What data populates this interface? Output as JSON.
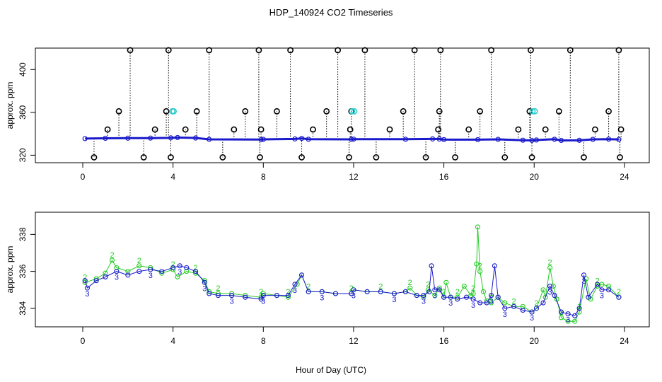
{
  "chart_data": {
    "title": "HDP_140924  CO2 Timeseries",
    "xlabel": "Hour of Day (UTC)",
    "colors": {
      "black": "#000000",
      "blue": "#1a1acc",
      "green": "#22cc22",
      "cyan": "#33cccc",
      "frame": "#000000"
    },
    "panels": [
      {
        "type": "scatter",
        "ylabel": "approx. ppm",
        "xlim": [
          -2.1,
          25.1
        ],
        "ylim": [
          313,
          420
        ],
        "xticks": [
          0,
          4,
          8,
          12,
          16,
          20,
          24
        ],
        "xtick_labels": [
          "0",
          "4",
          "8",
          "12",
          "16",
          "20",
          "24"
        ],
        "yticks": [
          320,
          360,
          400
        ],
        "ytick_labels": [
          "320",
          "360",
          "400"
        ],
        "cal_levels": [
          318,
          344,
          361,
          418
        ],
        "cal_hours": [
          0.5,
          1.1,
          1.6,
          2.1,
          2.7,
          3.2,
          3.7,
          3.8,
          3.9,
          4.55,
          5.05,
          5.6,
          6.2,
          6.7,
          7.2,
          7.8,
          7.85,
          7.9,
          8.6,
          9.2,
          9.7,
          10.2,
          10.8,
          11.3,
          11.8,
          11.85,
          11.9,
          12.5,
          13.0,
          13.6,
          14.2,
          14.7,
          15.2,
          15.75,
          15.8,
          15.85,
          16.5,
          17.1,
          17.6,
          18.1,
          18.7,
          19.3,
          19.8,
          19.85,
          19.9,
          20.5,
          21.1,
          21.6,
          22.2,
          22.7,
          23.3,
          23.75,
          23.8,
          23.85
        ],
        "baseline": [
          [
            0.1,
            335.5
          ],
          [
            1.0,
            335.8
          ],
          [
            2.0,
            335.9
          ],
          [
            3.0,
            336.0
          ],
          [
            3.9,
            336.2
          ],
          [
            4.2,
            336.5
          ],
          [
            5.0,
            336.1
          ],
          [
            5.6,
            334.8
          ],
          [
            7.9,
            334.6
          ],
          [
            8.0,
            334.8
          ],
          [
            9.4,
            335.2
          ],
          [
            9.7,
            335.7
          ],
          [
            10.0,
            334.9
          ],
          [
            11.9,
            334.8
          ],
          [
            12.0,
            335.0
          ],
          [
            14.3,
            334.9
          ],
          [
            15.5,
            335.2
          ],
          [
            15.8,
            335.1
          ],
          [
            16.0,
            334.6
          ],
          [
            17.5,
            334.5
          ],
          [
            18.4,
            334.8
          ],
          [
            19.5,
            334.0
          ],
          [
            19.9,
            333.8
          ],
          [
            20.1,
            334.2
          ],
          [
            20.9,
            334.9
          ],
          [
            21.2,
            333.8
          ],
          [
            22.0,
            333.9
          ],
          [
            22.6,
            334.8
          ],
          [
            23.3,
            335.0
          ],
          [
            23.75,
            334.7
          ]
        ],
        "cyan_points": [
          [
            3.97,
            361
          ],
          [
            4.03,
            361
          ],
          [
            11.93,
            361
          ],
          [
            12.03,
            361
          ],
          [
            19.93,
            361
          ],
          [
            20.03,
            361
          ]
        ]
      },
      {
        "type": "line",
        "ylabel": "approx. ppm",
        "xlim": [
          -2.1,
          25.1
        ],
        "ylim": [
          333.0,
          339.2
        ],
        "xticks": [
          0,
          4,
          8,
          12,
          16,
          20,
          24
        ],
        "xtick_labels": [
          "0",
          "4",
          "8",
          "12",
          "16",
          "20",
          "24"
        ],
        "yticks": [
          334,
          336,
          338
        ],
        "ytick_labels": [
          "334",
          "336",
          "338"
        ],
        "series": [
          {
            "name": "2",
            "marker": "2",
            "color": "#22cc22",
            "points": [
              [
                0.1,
                335.4
              ],
              [
                0.6,
                335.6
              ],
              [
                1.0,
                335.9
              ],
              [
                1.3,
                336.6
              ],
              [
                1.5,
                336.2
              ],
              [
                2.0,
                336.0
              ],
              [
                2.5,
                336.3
              ],
              [
                3.0,
                336.2
              ],
              [
                3.5,
                335.9
              ],
              [
                4.0,
                336.1
              ],
              [
                4.2,
                335.7
              ],
              [
                4.6,
                336.0
              ],
              [
                5.0,
                335.9
              ],
              [
                5.4,
                335.5
              ],
              [
                5.6,
                334.9
              ],
              [
                6.0,
                334.8
              ],
              [
                6.6,
                334.8
              ],
              [
                7.2,
                334.7
              ],
              [
                7.9,
                334.6
              ],
              [
                8.0,
                334.8
              ],
              [
                8.6,
                334.7
              ],
              [
                9.1,
                334.6
              ],
              [
                9.5,
                335.3
              ],
              [
                9.7,
                335.8
              ],
              [
                10.0,
                334.9
              ],
              [
                10.6,
                334.9
              ],
              [
                11.2,
                334.8
              ],
              [
                11.9,
                334.8
              ],
              [
                12.0,
                335.0
              ],
              [
                12.6,
                334.9
              ],
              [
                13.2,
                334.9
              ],
              [
                13.8,
                334.8
              ],
              [
                14.3,
                334.9
              ],
              [
                14.5,
                335.1
              ],
              [
                14.8,
                334.7
              ],
              [
                15.1,
                334.6
              ],
              [
                15.3,
                335.0
              ],
              [
                15.6,
                334.7
              ],
              [
                15.8,
                335.1
              ],
              [
                16.0,
                334.6
              ],
              [
                16.1,
                335.4
              ],
              [
                16.3,
                334.6
              ],
              [
                16.6,
                334.6
              ],
              [
                16.9,
                335.2
              ],
              [
                17.2,
                334.7
              ],
              [
                17.3,
                334.8
              ],
              [
                17.45,
                336.4
              ],
              [
                17.5,
                338.4
              ],
              [
                17.6,
                336.0
              ],
              [
                17.75,
                334.9
              ],
              [
                17.9,
                334.4
              ],
              [
                18.1,
                334.3
              ],
              [
                18.4,
                334.6
              ],
              [
                18.7,
                334.3
              ],
              [
                19.1,
                334.1
              ],
              [
                19.5,
                334.1
              ],
              [
                19.9,
                333.8
              ],
              [
                20.1,
                334.0
              ],
              [
                20.4,
                335.0
              ],
              [
                20.5,
                334.6
              ],
              [
                20.7,
                336.2
              ],
              [
                20.85,
                335.2
              ],
              [
                21.0,
                334.5
              ],
              [
                21.2,
                333.5
              ],
              [
                21.5,
                333.3
              ],
              [
                21.8,
                333.3
              ],
              [
                22.0,
                333.8
              ],
              [
                22.3,
                335.6
              ],
              [
                22.5,
                334.5
              ],
              [
                22.8,
                335.2
              ],
              [
                23.0,
                335.3
              ],
              [
                23.3,
                335.2
              ],
              [
                23.75,
                334.6
              ]
            ]
          },
          {
            "name": "3",
            "marker": "3",
            "color": "#1a1acc",
            "points": [
              [
                0.1,
                335.5
              ],
              [
                0.2,
                335.1
              ],
              [
                0.6,
                335.5
              ],
              [
                1.0,
                335.7
              ],
              [
                1.5,
                336.0
              ],
              [
                2.0,
                335.8
              ],
              [
                2.5,
                336.0
              ],
              [
                3.0,
                336.1
              ],
              [
                3.5,
                336.0
              ],
              [
                4.0,
                336.2
              ],
              [
                4.3,
                336.3
              ],
              [
                4.6,
                336.2
              ],
              [
                5.0,
                336.0
              ],
              [
                5.4,
                335.4
              ],
              [
                5.6,
                334.8
              ],
              [
                6.0,
                334.7
              ],
              [
                6.6,
                334.7
              ],
              [
                7.2,
                334.6
              ],
              [
                7.9,
                334.5
              ],
              [
                8.0,
                334.7
              ],
              [
                8.6,
                334.7
              ],
              [
                9.1,
                334.7
              ],
              [
                9.4,
                335.3
              ],
              [
                9.7,
                335.8
              ],
              [
                10.0,
                334.9
              ],
              [
                10.6,
                334.9
              ],
              [
                11.2,
                334.8
              ],
              [
                11.9,
                334.8
              ],
              [
                12.0,
                335.0
              ],
              [
                12.6,
                334.9
              ],
              [
                13.2,
                334.9
              ],
              [
                13.8,
                334.8
              ],
              [
                14.3,
                334.9
              ],
              [
                14.8,
                334.7
              ],
              [
                15.1,
                334.7
              ],
              [
                15.35,
                334.9
              ],
              [
                15.45,
                336.3
              ],
              [
                15.6,
                335.0
              ],
              [
                15.8,
                335.0
              ],
              [
                16.0,
                334.6
              ],
              [
                16.3,
                334.6
              ],
              [
                16.6,
                334.5
              ],
              [
                17.0,
                334.6
              ],
              [
                17.3,
                334.5
              ],
              [
                17.6,
                334.3
              ],
              [
                17.9,
                334.3
              ],
              [
                18.1,
                334.7
              ],
              [
                18.25,
                336.3
              ],
              [
                18.4,
                334.6
              ],
              [
                18.7,
                334.0
              ],
              [
                19.1,
                334.1
              ],
              [
                19.5,
                333.9
              ],
              [
                19.9,
                333.8
              ],
              [
                20.1,
                334.0
              ],
              [
                20.4,
                334.3
              ],
              [
                20.7,
                335.2
              ],
              [
                20.9,
                334.7
              ],
              [
                21.2,
                333.8
              ],
              [
                21.5,
                333.7
              ],
              [
                21.8,
                333.6
              ],
              [
                22.0,
                334.0
              ],
              [
                22.2,
                335.8
              ],
              [
                22.4,
                334.6
              ],
              [
                22.8,
                335.3
              ],
              [
                23.0,
                335.0
              ],
              [
                23.3,
                335.0
              ],
              [
                23.75,
                334.6
              ]
            ]
          }
        ]
      }
    ]
  }
}
